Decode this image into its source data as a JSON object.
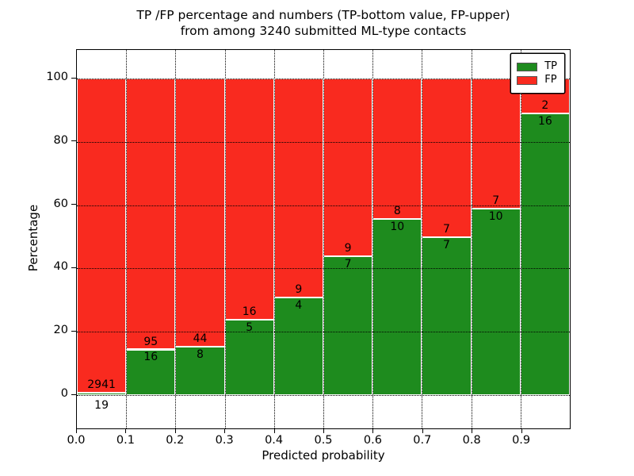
{
  "figure": {
    "title_line1": "TP /FP percentage and numbers (TP-bottom value, FP-upper)",
    "title_line2": "from among 3240 submitted ML-type contacts"
  },
  "axes": {
    "xlabel": "Predicted probability",
    "ylabel": "Percentage",
    "x_ticks": [
      "0.0",
      "0.1",
      "0.2",
      "0.3",
      "0.4",
      "0.5",
      "0.6",
      "0.7",
      "0.8",
      "0.9"
    ],
    "y_ticks": [
      "0",
      "20",
      "40",
      "60",
      "80",
      "100"
    ]
  },
  "legend": {
    "position": "upper right",
    "items": [
      {
        "label": "TP",
        "color": "#1e8b1e"
      },
      {
        "label": "FP",
        "color": "#f92a1f"
      }
    ]
  },
  "colors": {
    "tp_green": "#1e8b1e",
    "fp_red": "#f92a1f",
    "grid": "#000000",
    "background": "#ffffff"
  },
  "chart_data": {
    "type": "bar",
    "stacked": true,
    "normalized_to_percent": 100,
    "title": "TP /FP percentage and numbers (TP-bottom value, FP-upper) from among 3240 submitted ML-type contacts",
    "xlabel": "Predicted probability",
    "ylabel": "Percentage",
    "xlim": [
      0.0,
      1.0
    ],
    "ylim": [
      0,
      100
    ],
    "grid": true,
    "legend_position": "upper right",
    "total_contacts": 3240,
    "categories": [
      "0.0-0.1",
      "0.1-0.2",
      "0.2-0.3",
      "0.3-0.4",
      "0.4-0.5",
      "0.5-0.6",
      "0.6-0.7",
      "0.7-0.8",
      "0.8-0.9",
      "0.9-1.0"
    ],
    "series": [
      {
        "name": "TP",
        "values": [
          19,
          16,
          8,
          5,
          4,
          7,
          10,
          7,
          10,
          16
        ]
      },
      {
        "name": "FP",
        "values": [
          2941,
          95,
          44,
          16,
          9,
          9,
          8,
          7,
          7,
          2
        ]
      }
    ],
    "tp_percent": [
      0.64,
      14.41,
      15.38,
      23.81,
      30.77,
      43.75,
      55.56,
      50.0,
      58.82,
      88.89
    ]
  }
}
